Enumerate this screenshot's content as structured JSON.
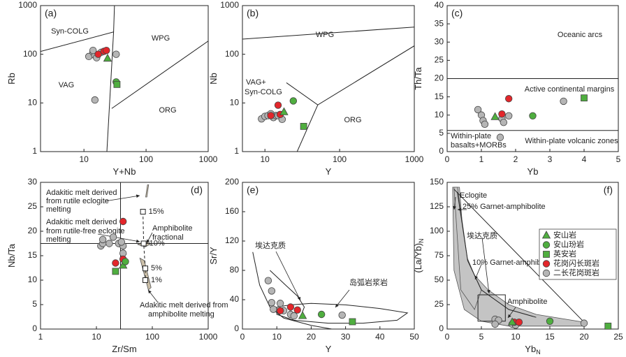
{
  "chart_data": [
    {
      "type": "scatter",
      "panel": "(a)",
      "x_label": "Y+Nb",
      "y_label": "Rb",
      "xlog": true,
      "ylog": true,
      "xlim": [
        2,
        1000
      ],
      "ylim": [
        1,
        1000
      ],
      "xticks": [
        10,
        100,
        1000
      ],
      "yticks": [
        1,
        10,
        100,
        1000
      ],
      "annotations": [
        "Syn-COLG",
        "WPG",
        "VAG",
        "ORG"
      ],
      "lines": [
        {
          "x": [
            2,
            30,
            31
          ],
          "y": [
            114,
            287,
            1000
          ]
        },
        {
          "x": [
            30,
            23.4
          ],
          "y": [
            287,
            1
          ]
        },
        {
          "x": [
            28,
            1000
          ],
          "y": [
            7.7,
            187
          ]
        }
      ],
      "series": [
        {
          "marker": "triangle",
          "color": "#4fae3f",
          "x": [
            24
          ],
          "y": [
            82
          ]
        },
        {
          "marker": "circle",
          "color": "#4fae3f",
          "x": [
            33
          ],
          "y": [
            27
          ]
        },
        {
          "marker": "square",
          "color": "#4fae3f",
          "x": [
            34
          ],
          "y": [
            24
          ]
        },
        {
          "marker": "circle",
          "color": "#e3262b",
          "x": [
            17,
            21,
            23
          ],
          "y": [
            100,
            115,
            120
          ]
        },
        {
          "marker": "circle",
          "color": "#b5b5b5",
          "x": [
            12,
            14,
            15,
            16,
            19,
            15,
            33,
            14
          ],
          "y": [
            90,
            110,
            95,
            85,
            110,
            11.5,
            100,
            120
          ]
        }
      ]
    },
    {
      "type": "scatter",
      "panel": "(b)",
      "x_label": "Y",
      "y_label": "Nb",
      "xlog": true,
      "ylog": true,
      "xlim": [
        5,
        1000
      ],
      "ylim": [
        1,
        1000
      ],
      "xticks": [
        10,
        100,
        1000
      ],
      "yticks": [
        1,
        10,
        100,
        1000
      ],
      "annotations": [
        "WPG",
        "VAG+",
        "Syn-COLG",
        "ORG"
      ],
      "lines": [
        {
          "x": [
            5,
            1000
          ],
          "y": [
            205,
            362
          ]
        },
        {
          "x": [
            19.4,
            51,
            1000
          ],
          "y": [
            26,
            9.1,
            149
          ]
        },
        {
          "x": [
            51,
            27
          ],
          "y": [
            9.1,
            1
          ]
        }
      ],
      "series": [
        {
          "marker": "triangle",
          "color": "#4fae3f",
          "x": [
            18
          ],
          "y": [
            6.5
          ]
        },
        {
          "marker": "circle",
          "color": "#4fae3f",
          "x": [
            24
          ],
          "y": [
            11
          ]
        },
        {
          "marker": "square",
          "color": "#4fae3f",
          "x": [
            33
          ],
          "y": [
            3.3
          ]
        },
        {
          "marker": "circle",
          "color": "#e3262b",
          "x": [
            12,
            15,
            16
          ],
          "y": [
            5.5,
            9,
            5.8
          ]
        },
        {
          "marker": "circle",
          "color": "#b5b5b5",
          "x": [
            9,
            10,
            11,
            13,
            14,
            15,
            17,
            12
          ],
          "y": [
            4.7,
            5.3,
            5.5,
            5,
            5.5,
            5.5,
            4.6,
            6
          ]
        }
      ]
    },
    {
      "type": "scatter",
      "panel": "(c)",
      "x_label": "Yb",
      "y_label": "Th/Ta",
      "xlog": false,
      "ylog": false,
      "xlim": [
        0,
        5
      ],
      "ylim": [
        0,
        40
      ],
      "xticks": [
        0,
        1,
        2,
        3,
        4,
        5
      ],
      "yticks": [
        0,
        5,
        10,
        15,
        20,
        25,
        30,
        35,
        40
      ],
      "annotations": [
        "Oceanic arcs",
        "Active continental margins",
        "Within-plate",
        "basalts+MORBs",
        "Within-plate volcanic zones"
      ],
      "lines": [
        {
          "x": [
            0,
            5
          ],
          "y": [
            20,
            20
          ]
        },
        {
          "x": [
            0,
            5
          ],
          "y": [
            5.8,
            5.8
          ]
        }
      ],
      "series": [
        {
          "marker": "triangle",
          "color": "#4fae3f",
          "x": [
            1.4
          ],
          "y": [
            9.5
          ]
        },
        {
          "marker": "circle",
          "color": "#4fae3f",
          "x": [
            2.5
          ],
          "y": [
            9.8
          ]
        },
        {
          "marker": "square",
          "color": "#4fae3f",
          "x": [
            4
          ],
          "y": [
            14.7
          ]
        },
        {
          "marker": "circle",
          "color": "#e3262b",
          "x": [
            1.6,
            1.8
          ],
          "y": [
            10.3,
            14.5
          ]
        },
        {
          "marker": "circle",
          "color": "#b5b5b5",
          "x": [
            0.9,
            1,
            1.05,
            1.1,
            1.6,
            1.65,
            1.8,
            3.4,
            1.55
          ],
          "y": [
            11.5,
            10,
            8.5,
            7.5,
            9,
            8,
            9.8,
            13.8,
            3.9
          ]
        }
      ]
    },
    {
      "type": "scatter",
      "panel": "(d)",
      "x_label": "Zr/Sm",
      "y_label": "Nb/Ta",
      "xlog": true,
      "ylog": false,
      "xlim": [
        1,
        1000
      ],
      "ylim": [
        0,
        30
      ],
      "xticks": [
        1,
        10,
        100,
        1000
      ],
      "yticks": [
        0,
        5,
        10,
        15,
        20,
        25,
        30
      ],
      "annotations": [
        "Adakitic melt derived",
        "from rutile eclogite",
        "melting",
        "Adakitic melt derived",
        "from rutile-free eclogite",
        "melting",
        "Amphibolite",
        "fractional",
        "Adakitic melt derived from",
        "amphibolite melting"
      ],
      "lines": [
        {
          "x": [
            27,
            27
          ],
          "y": [
            0,
            30
          ]
        },
        {
          "x": [
            1,
            1000
          ],
          "y": [
            17.5,
            17.5
          ]
        },
        {
          "x": [
            68,
            70,
            75,
            75
          ],
          "y": [
            24,
            17.5,
            12.4,
            10
          ],
          "dash": true
        }
      ],
      "field_color": "#cbbfa8",
      "fields": [
        {
          "x": [
            76,
            82,
            86,
            80
          ],
          "y": [
            27,
            29.5,
            29.5,
            27
          ]
        },
        {
          "x": [
            55,
            75,
            95,
            75
          ],
          "y": [
            17.3,
            18,
            17.5,
            16.8
          ]
        },
        {
          "x": [
            60,
            72,
            95,
            85
          ],
          "y": [
            14.5,
            14,
            8.5,
            8
          ]
        }
      ],
      "model": {
        "x": [
          68,
          70,
          75,
          75
        ],
        "y": [
          24,
          17.5,
          12.4,
          10
        ],
        "labels": [
          "15%",
          "10%",
          "5%",
          "1%"
        ]
      },
      "series": [
        {
          "marker": "triangle",
          "color": "#4fae3f",
          "x": [
            30
          ],
          "y": [
            13
          ]
        },
        {
          "marker": "circle",
          "color": "#4fae3f",
          "x": [
            33
          ],
          "y": [
            13.8
          ]
        },
        {
          "marker": "square",
          "color": "#4fae3f",
          "x": [
            22
          ],
          "y": [
            11.8
          ]
        },
        {
          "marker": "circle",
          "color": "#e3262b",
          "x": [
            30,
            30,
            22
          ],
          "y": [
            22,
            14.3,
            13.5
          ]
        },
        {
          "marker": "circle",
          "color": "#b5b5b5",
          "x": [
            12,
            13,
            13,
            17,
            20,
            25,
            30,
            30,
            28
          ],
          "y": [
            17,
            17.5,
            18.3,
            17.5,
            18.8,
            17.5,
            17,
            15.5,
            17.8
          ]
        }
      ]
    },
    {
      "type": "scatter",
      "panel": "(e)",
      "x_label": "Y",
      "y_label": "Sr/Y",
      "xlog": false,
      "ylog": false,
      "xlim": [
        0,
        50
      ],
      "ylim": [
        0,
        200
      ],
      "xticks": [
        0,
        10,
        20,
        30,
        40,
        50
      ],
      "yticks": [
        0,
        40,
        80,
        120,
        160,
        200
      ],
      "annotations": [
        "埃达克质",
        "岛弧岩浆岩"
      ],
      "lines": [
        {
          "x": [
            3,
            5,
            8,
            12,
            20,
            26
          ],
          "y": [
            105,
            60,
            30,
            15,
            5,
            0
          ]
        },
        {
          "x": [
            8,
            13,
            16,
            18,
            17
          ],
          "y": [
            80,
            58,
            45,
            30,
            18
          ]
        },
        {
          "x": [
            10,
            14,
            20,
            30,
            40,
            48,
            45,
            35,
            25,
            15,
            10,
            10
          ],
          "y": [
            30,
            33,
            35,
            33,
            28,
            22,
            12,
            8,
            8,
            12,
            20,
            30
          ]
        }
      ],
      "series": [
        {
          "marker": "triangle",
          "color": "#4fae3f",
          "x": [
            17.5
          ],
          "y": [
            18
          ]
        },
        {
          "marker": "circle",
          "color": "#4fae3f",
          "x": [
            23
          ],
          "y": [
            20
          ]
        },
        {
          "marker": "square",
          "color": "#4fae3f",
          "x": [
            32
          ],
          "y": [
            10
          ]
        },
        {
          "marker": "circle",
          "color": "#e3262b",
          "x": [
            11,
            14,
            16
          ],
          "y": [
            25,
            30,
            26
          ]
        },
        {
          "marker": "circle",
          "color": "#b5b5b5",
          "x": [
            7.5,
            8.5,
            8.5,
            9,
            11,
            12,
            14,
            15,
            29
          ],
          "y": [
            66,
            52,
            36,
            27,
            35,
            25,
            20,
            18,
            19
          ]
        }
      ]
    },
    {
      "type": "scatter",
      "panel": "(f)",
      "x_label": "Yb",
      "x_label_sub": "N",
      "y_label": "(La/Yb)",
      "y_label_sub": "N",
      "xlog": false,
      "ylog": false,
      "xlim": [
        0,
        25
      ],
      "ylim": [
        0,
        150
      ],
      "xticks": [
        0,
        5,
        10,
        15,
        20,
        25
      ],
      "yticks": [
        0,
        25,
        50,
        75,
        100,
        125,
        150
      ],
      "annotations": [
        "Eclogite",
        "25% Garnet-amphibolite",
        "埃达克质",
        "10% Garnet-amphibolite",
        "Amphibolite"
      ],
      "field_color": "#c4c4c4",
      "fields": [
        {
          "x": [
            0.8,
            1.8,
            2.5,
            4,
            6,
            9,
            13,
            20,
            20,
            9,
            5,
            2.5,
            1
          ],
          "y": [
            145,
            145,
            80,
            55,
            40,
            25,
            15,
            7,
            3,
            3,
            8,
            20,
            60
          ]
        },
        {
          "x": [
            1,
            1.5,
            3,
            5,
            4,
            2
          ],
          "y": [
            145,
            145,
            70,
            40,
            20,
            40
          ]
        }
      ],
      "lines": [
        {
          "x": [
            4.5,
            8.5,
            8.5,
            4.5,
            4.5
          ],
          "y": [
            35,
            35,
            8,
            8,
            35
          ]
        },
        {
          "x": [
            1.5,
            3,
            5,
            9,
            13
          ],
          "y": [
            140,
            70,
            40,
            20,
            12
          ]
        },
        {
          "x": [
            1,
            20
          ],
          "y": [
            143,
            7
          ]
        }
      ],
      "legend": true,
      "series": [
        {
          "name": "安山岩",
          "marker": "triangle",
          "color": "#4fae3f",
          "x": [
            9.5
          ],
          "y": [
            7
          ]
        },
        {
          "name": "安山玢岩",
          "marker": "circle",
          "color": "#4fae3f",
          "x": [
            15
          ],
          "y": [
            8
          ]
        },
        {
          "name": "英安岩",
          "marker": "square",
          "color": "#4fae3f",
          "x": [
            23.5
          ],
          "y": [
            3
          ]
        },
        {
          "name": "花岗闪长斑岩",
          "marker": "circle",
          "color": "#e3262b",
          "x": [
            9.8,
            10.5
          ],
          "y": [
            7,
            7
          ]
        },
        {
          "name": "二长花岗斑岩",
          "marker": "circle",
          "color": "#b5b5b5",
          "x": [
            9.5,
            10,
            7,
            7.5,
            7,
            20
          ],
          "y": [
            5,
            4,
            10,
            9,
            5,
            6
          ]
        }
      ]
    }
  ]
}
